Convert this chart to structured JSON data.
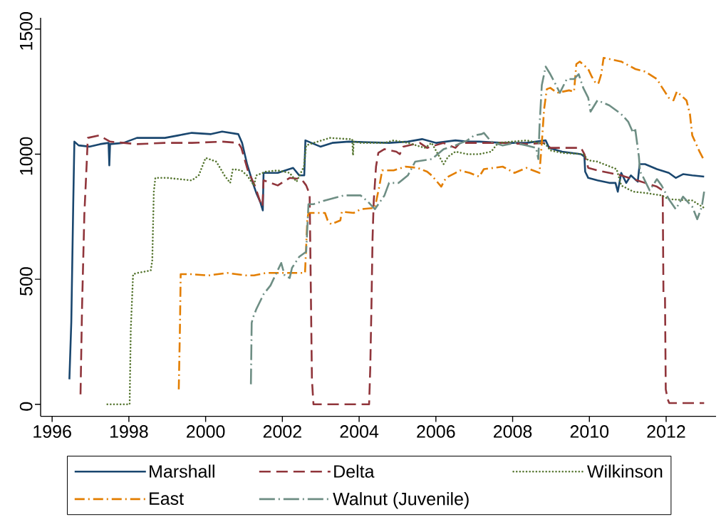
{
  "chart_data": {
    "type": "line",
    "xlim": [
      1995.7,
      2013.3
    ],
    "ylim": [
      -48,
      1545
    ],
    "xticks": [
      1996,
      1998,
      2000,
      2002,
      2004,
      2006,
      2008,
      2010,
      2012
    ],
    "yticks": [
      0,
      500,
      1000,
      1500
    ],
    "legend": "bottom",
    "marker": "none",
    "series": [
      {
        "name": "Marshall",
        "color": "#1a476f",
        "line_style": "solid",
        "x": [
          1996.45,
          1996.5,
          1996.55,
          1996.58,
          1996.69,
          1996.97,
          1997.25,
          1997.47,
          1997.49,
          1997.51,
          1997.86,
          1998.21,
          1998.94,
          1999.29,
          1999.64,
          2000.14,
          2000.43,
          2000.85,
          2000.95,
          2001.08,
          2001.23,
          2001.32,
          2001.42,
          2001.49,
          2001.51,
          2001.88,
          2002.28,
          2002.44,
          2002.57,
          2002.6,
          2002.99,
          2003.3,
          2003.73,
          2004.78,
          2005.27,
          2005.64,
          2006.01,
          2006.51,
          2006.82,
          2007.13,
          2007.74,
          2008.36,
          2008.86,
          2008.95,
          2009.29,
          2009.78,
          2009.87,
          2009.89,
          2009.97,
          2010.21,
          2010.52,
          2010.68,
          2010.74,
          2010.83,
          2010.96,
          2011.08,
          2011.26,
          2011.31,
          2011.45,
          2011.76,
          2012.07,
          2012.25,
          2012.44,
          2012.68,
          2012.99
        ],
        "values": [
          100,
          330,
          800,
          1050,
          1035,
          1030,
          1040,
          1045,
          955,
          1040,
          1045,
          1065,
          1065,
          1075,
          1085,
          1080,
          1090,
          1080,
          1045,
          960,
          885,
          845,
          810,
          775,
          925,
          925,
          945,
          915,
          915,
          1055,
          1030,
          1045,
          1050,
          1045,
          1050,
          1060,
          1045,
          1055,
          1050,
          1050,
          1045,
          1045,
          1055,
          1025,
          1010,
          1000,
          990,
          930,
          905,
          895,
          885,
          885,
          850,
          925,
          885,
          915,
          890,
          960,
          960,
          940,
          925,
          905,
          920,
          915,
          910
        ]
      },
      {
        "name": "Delta",
        "color": "#90353b",
        "line_style": "dashed",
        "x": [
          1996.74,
          1996.78,
          1996.84,
          1996.9,
          1996.93,
          1997.22,
          1997.51,
          1998.21,
          1998.94,
          1999.64,
          2000.43,
          2000.85,
          2000.93,
          2001.1,
          2001.28,
          2001.42,
          2001.48,
          2001.51,
          2001.88,
          2002.19,
          2002.5,
          2002.62,
          2002.71,
          2002.74,
          2002.77,
          2002.81,
          2004.26,
          2004.29,
          2004.32,
          2004.35,
          2004.38,
          2004.44,
          2004.5,
          2004.66,
          2004.97,
          2005.06,
          2005.15,
          2005.58,
          2005.77,
          2006.19,
          2006.51,
          2006.63,
          2007.13,
          2007.74,
          2008.36,
          2008.86,
          2008.98,
          2009.29,
          2009.6,
          2009.78,
          2009.87,
          2009.97,
          2010.21,
          2010.52,
          2010.83,
          2011.14,
          2011.45,
          2011.76,
          2011.91,
          2011.93,
          2011.97,
          2011.99,
          2012.04,
          2012.08,
          2012.99
        ],
        "values": [
          40,
          390,
          760,
          960,
          1065,
          1075,
          1050,
          1040,
          1045,
          1045,
          1050,
          1045,
          1025,
          935,
          875,
          810,
          790,
          895,
          875,
          905,
          900,
          875,
          840,
          475,
          100,
          0,
          0,
          145,
          385,
          665,
          810,
          950,
          1005,
          1020,
          1010,
          1000,
          1030,
          1045,
          1025,
          1045,
          1025,
          1045,
          1045,
          1045,
          1040,
          1045,
          1025,
          1025,
          1025,
          1025,
          1000,
          945,
          935,
          925,
          915,
          900,
          885,
          870,
          855,
          440,
          430,
          60,
          20,
          5,
          5
        ]
      },
      {
        "name": "Wilkinson",
        "color": "#55752f",
        "line_style": "dotted",
        "x": [
          1997.44,
          1998.02,
          1998.05,
          1998.11,
          1998.22,
          1998.57,
          1998.61,
          1998.65,
          1998.69,
          1999.0,
          1999.64,
          1999.82,
          2000.0,
          2000.28,
          2000.49,
          2000.64,
          2000.71,
          2000.93,
          2001.08,
          2001.26,
          2001.32,
          2001.57,
          2001.88,
          2002.19,
          2002.37,
          2002.56,
          2002.62,
          2002.81,
          2003.24,
          2003.73,
          2003.82,
          2003.84,
          2003.86,
          2004.04,
          2004.66,
          2004.9,
          2005.27,
          2005.71,
          2005.89,
          2006.2,
          2006.32,
          2006.51,
          2006.82,
          2007.13,
          2007.44,
          2007.62,
          2008.36,
          2008.86,
          2008.98,
          2009.29,
          2009.84,
          2009.97,
          2010.21,
          2010.71,
          2010.83,
          2011.14,
          2011.45,
          2011.88,
          2012.07,
          2012.68,
          2012.99
        ],
        "values": [
          0,
          0,
          300,
          520,
          525,
          535,
          575,
          850,
          905,
          905,
          895,
          915,
          985,
          970,
          915,
          885,
          940,
          935,
          915,
          875,
          915,
          930,
          935,
          925,
          890,
          950,
          1035,
          1045,
          1065,
          1060,
          1060,
          995,
          1050,
          1045,
          1045,
          1055,
          1045,
          1025,
          1045,
          960,
          990,
          1010,
          1000,
          1000,
          1010,
          1045,
          1055,
          1040,
          1015,
          1005,
          1000,
          975,
          970,
          940,
          875,
          850,
          845,
          835,
          820,
          815,
          785
        ]
      },
      {
        "name": "East",
        "color": "#e37e00",
        "line_style": "dashdot",
        "x": [
          1999.3,
          1999.33,
          1999.35,
          1999.64,
          2000.06,
          2000.56,
          2001.06,
          2001.26,
          2001.57,
          2002.19,
          2002.59,
          2002.62,
          2002.65,
          2002.68,
          2003.0,
          2003.11,
          2003.18,
          2003.27,
          2003.51,
          2003.55,
          2003.86,
          2004.04,
          2004.41,
          2004.53,
          2004.6,
          2004.9,
          2005.21,
          2005.52,
          2005.77,
          2005.89,
          2006.14,
          2006.26,
          2006.51,
          2006.63,
          2006.88,
          2007.13,
          2007.25,
          2007.74,
          2008.05,
          2008.36,
          2008.7,
          2008.76,
          2008.82,
          2008.89,
          2008.98,
          2009.16,
          2009.47,
          2009.6,
          2009.66,
          2009.75,
          2009.97,
          2010.06,
          2010.18,
          2010.24,
          2010.31,
          2010.37,
          2010.83,
          2011.2,
          2011.45,
          2011.76,
          2011.88,
          2012.07,
          2012.19,
          2012.28,
          2012.53,
          2012.62,
          2012.68,
          2012.87,
          2012.99
        ],
        "values": [
          60,
          300,
          520,
          520,
          515,
          525,
          515,
          515,
          525,
          525,
          525,
          630,
          740,
          765,
          765,
          765,
          735,
          720,
          735,
          770,
          765,
          780,
          785,
          875,
          935,
          935,
          950,
          945,
          930,
          915,
          870,
          905,
          925,
          935,
          925,
          910,
          940,
          950,
          925,
          945,
          925,
          1045,
          1180,
          1260,
          1265,
          1245,
          1255,
          1250,
          1360,
          1370,
          1340,
          1310,
          1280,
          1285,
          1320,
          1385,
          1370,
          1340,
          1330,
          1300,
          1270,
          1225,
          1215,
          1250,
          1215,
          1160,
          1075,
          1010,
          975
        ]
      },
      {
        "name": "Walnut (Juvenile)",
        "color": "#6e8e84",
        "line_style": "longdashdot",
        "x": [
          2001.18,
          2001.2,
          2001.23,
          2001.32,
          2001.51,
          2001.69,
          2001.97,
          2002.06,
          2002.19,
          2002.25,
          2002.44,
          2002.53,
          2002.62,
          2002.68,
          2002.81,
          2003.11,
          2003.61,
          2004.04,
          2004.23,
          2004.41,
          2004.66,
          2004.78,
          2005.03,
          2005.27,
          2005.46,
          2005.89,
          2006.2,
          2006.51,
          2006.82,
          2007.0,
          2007.19,
          2007.25,
          2007.44,
          2007.74,
          2008.05,
          2008.36,
          2008.61,
          2008.67,
          2008.7,
          2008.76,
          2008.86,
          2008.98,
          2009.1,
          2009.23,
          2009.41,
          2009.6,
          2009.72,
          2009.84,
          2009.97,
          2010.03,
          2010.21,
          2010.52,
          2010.83,
          2011.01,
          2011.14,
          2011.19,
          2011.29,
          2011.32,
          2011.38,
          2011.57,
          2011.76,
          2011.88,
          2012.07,
          2012.25,
          2012.44,
          2012.68,
          2012.81,
          2012.93,
          2012.99
        ],
        "values": [
          80,
          325,
          345,
          380,
          440,
          475,
          565,
          515,
          505,
          545,
          590,
          600,
          610,
          800,
          800,
          815,
          835,
          835,
          810,
          780,
          835,
          885,
          885,
          915,
          970,
          980,
          1020,
          1035,
          1055,
          1075,
          1080,
          1085,
          1050,
          1035,
          1045,
          1035,
          1025,
          980,
          1110,
          1275,
          1350,
          1320,
          1285,
          1245,
          1300,
          1300,
          1320,
          1265,
          1225,
          1170,
          1215,
          1195,
          1160,
          1130,
          1085,
          1105,
          990,
          930,
          915,
          855,
          900,
          875,
          820,
          780,
          830,
          790,
          740,
          790,
          850
        ]
      }
    ]
  }
}
